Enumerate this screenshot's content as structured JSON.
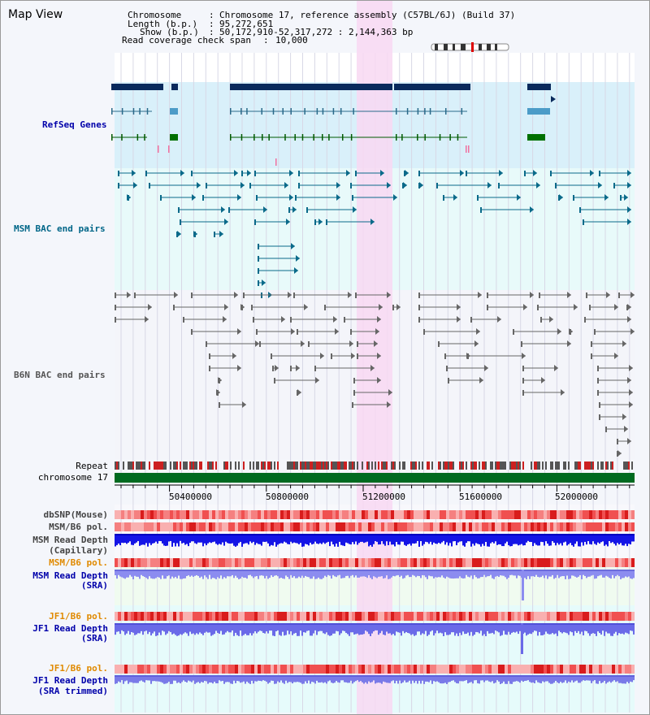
{
  "title": "Map View",
  "header": {
    "chromosome_key": "Chromosome",
    "chromosome_val": "Chromosome 17, reference assembly (C57BL/6J) (Build 37)",
    "length_key": "Length (b.p.)",
    "length_val": "95,272,651",
    "show_key": "Show (b.p.)",
    "show_val": "50,172,910-52,317,272 : 2,144,363 bp",
    "coverage_key": "Read coverage check span",
    "coverage_val": "10,000"
  },
  "tracks": {
    "refseq": "RefSeq Genes",
    "msm_bac": "MSM BAC end pairs",
    "b6n_bac": "B6N BAC end pairs",
    "repeat": "Repeat",
    "chromosome": "chromosome 17",
    "dbsnp": "dbSNP(Mouse)",
    "msm_b6_pol_1": "MSM/B6 pol.",
    "msm_depth_cap_1": "MSM Read Depth",
    "msm_depth_cap_2": "(Capillary)",
    "msm_b6_pol_2": "MSM/B6 pol.",
    "msm_depth_sra_1": "MSM Read Depth",
    "msm_depth_sra_2": "(SRA)",
    "jf1_b6_pol_1": "JF1/B6 pol.",
    "jf1_depth_sra_1": "JF1 Read Depth",
    "jf1_depth_sra_2": "(SRA)",
    "jf1_b6_pol_2": "JF1/B6 pol.",
    "jf1_depth_trim_1": "JF1 Read Depth",
    "jf1_depth_trim_2": "(SRA trimmed)"
  },
  "axis": {
    "ticks": [
      "50400000",
      "50800000",
      "51200000",
      "51600000",
      "52000000"
    ]
  },
  "colors": {
    "refseq_label": "#0000aa",
    "msm_label": "#006688",
    "b6n_label": "#555555",
    "orange_label": "#e08a00",
    "blue_label": "#0000aa",
    "highlight": "#f8d8f2"
  }
}
